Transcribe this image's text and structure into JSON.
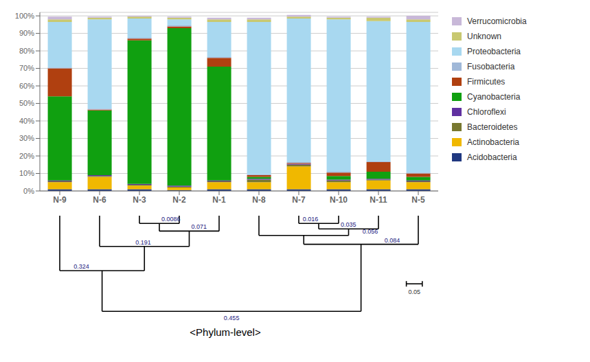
{
  "chart_data": {
    "type": "bar",
    "stacked": true,
    "title": "<Phylum-level>",
    "categories": [
      "N-9",
      "N-6",
      "N-3",
      "N-2",
      "N-1",
      "N-8",
      "N-7",
      "N-10",
      "N-11",
      "N-5"
    ],
    "series": [
      {
        "name": "Acidobacteria",
        "color": "#203880",
        "values": [
          1.0,
          1.0,
          1.0,
          0.5,
          1.0,
          1.0,
          1.0,
          1.0,
          1.0,
          1.0
        ]
      },
      {
        "name": "Actinobacteria",
        "color": "#f0b800",
        "values": [
          4.0,
          7.0,
          2.0,
          1.5,
          4.0,
          4.0,
          13.0,
          4.0,
          5.0,
          4.0
        ]
      },
      {
        "name": "Bacteroidetes",
        "color": "#787830",
        "values": [
          0.5,
          0.5,
          0.5,
          0.5,
          0.5,
          1.5,
          1.0,
          1.0,
          0.5,
          0.5
        ]
      },
      {
        "name": "Chloroflexi",
        "color": "#6030a0",
        "values": [
          0.5,
          0.5,
          0.5,
          0.5,
          0.5,
          0.5,
          0.5,
          0.5,
          0.5,
          0.5
        ]
      },
      {
        "name": "Cyanobacteria",
        "color": "#10a010",
        "values": [
          48.0,
          37.0,
          82.0,
          90.0,
          65.0,
          1.0,
          0.0,
          2.0,
          4.0,
          2.0
        ]
      },
      {
        "name": "Firmicutes",
        "color": "#b04010",
        "values": [
          16.0,
          0.5,
          1.0,
          1.0,
          5.0,
          1.0,
          0.5,
          2.0,
          5.5,
          2.0
        ]
      },
      {
        "name": "Fusobacteria",
        "color": "#a0b8d8",
        "values": [
          0.5,
          0.5,
          0.5,
          0.5,
          0.5,
          0.5,
          0.5,
          0.5,
          0.5,
          0.5
        ]
      },
      {
        "name": "Proteobacteria",
        "color": "#a8d8f0",
        "values": [
          26.0,
          51.0,
          11.0,
          3.5,
          20.0,
          87.0,
          82.0,
          87.0,
          80.0,
          86.0
        ]
      },
      {
        "name": "Unknown",
        "color": "#c8c870",
        "values": [
          1.5,
          1.0,
          1.0,
          1.0,
          1.5,
          1.5,
          1.0,
          1.0,
          2.0,
          1.5
        ]
      },
      {
        "name": "Verrucomicrobia",
        "color": "#c8b8d8",
        "values": [
          1.5,
          0.5,
          0.5,
          0.5,
          1.0,
          1.0,
          1.0,
          0.5,
          0.5,
          2.0
        ]
      }
    ],
    "ylim": [
      0,
      102
    ],
    "yticks": [
      {
        "value": 0,
        "label": "0%"
      },
      {
        "value": 10,
        "label": "10%"
      },
      {
        "value": 20,
        "label": "20%"
      },
      {
        "value": 30,
        "label": "30%"
      },
      {
        "value": 40,
        "label": "40%"
      },
      {
        "value": 50,
        "label": "50%"
      },
      {
        "value": 60,
        "label": "60%"
      },
      {
        "value": 70,
        "label": "70%"
      },
      {
        "value": 80,
        "label": "80%"
      },
      {
        "value": 90,
        "label": "90%"
      },
      {
        "value": 100,
        "label": "100%"
      }
    ],
    "grid": true,
    "legend": "right",
    "annotations": [
      "0.0086",
      "0.071",
      "0.191",
      "0.324",
      "0.016",
      "0.035",
      "0.056",
      "0.084",
      "0.455",
      "0.05"
    ]
  }
}
